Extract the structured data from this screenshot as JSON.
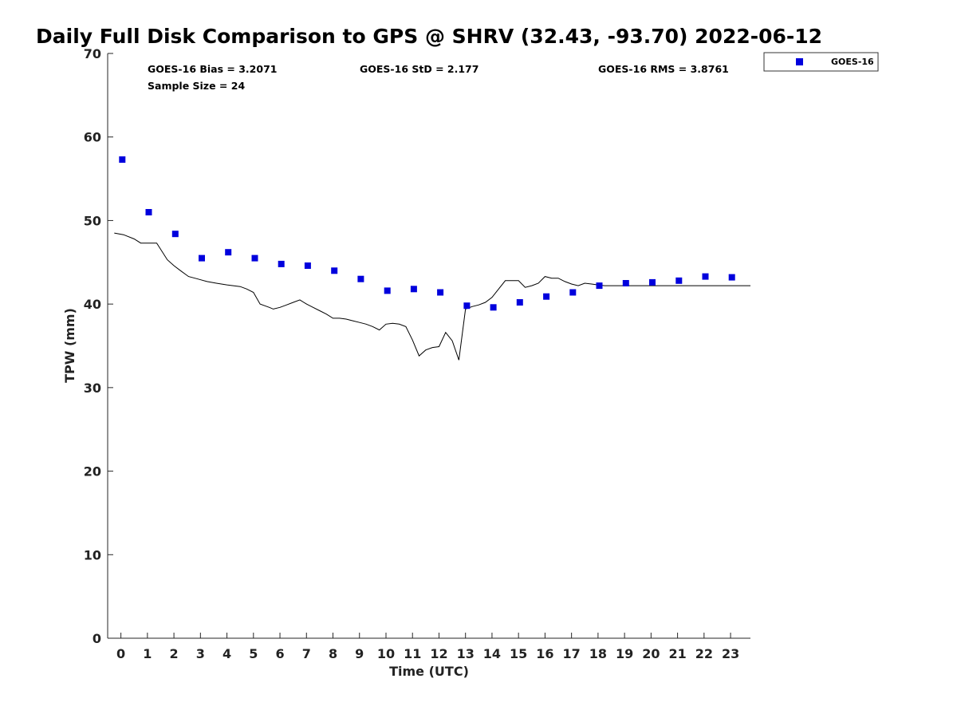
{
  "chart_data": {
    "type": "scatter",
    "title": "Daily Full Disk Comparison to GPS @ SHRV (32.43, -93.70) 2022-06-12",
    "xlabel": "Time (UTC)",
    "ylabel": "TPW (mm)",
    "xlim": [
      -0.5,
      23.75
    ],
    "ylim": [
      0,
      70
    ],
    "x_ticks": [
      0,
      1,
      2,
      3,
      4,
      5,
      6,
      7,
      8,
      9,
      10,
      11,
      12,
      13,
      14,
      15,
      16,
      17,
      18,
      19,
      20,
      21,
      22,
      23
    ],
    "y_ticks": [
      0,
      10,
      20,
      30,
      40,
      50,
      60,
      70
    ],
    "grid": false,
    "legend": {
      "placement": "top-right, outside plot"
    },
    "stats": {
      "bias": "GOES-16 Bias = 3.2071",
      "std": "GOES-16 StD = 2.177",
      "rms": "GOES-16 RMS = 3.8761",
      "sample_size": "Sample Size = 24"
    },
    "series": [
      {
        "name": "GOES-16",
        "kind": "scatter",
        "marker": "square",
        "color": "#0000dd",
        "x": [
          0.05,
          1.05,
          2.05,
          3.05,
          4.05,
          5.05,
          6.05,
          7.05,
          8.05,
          9.05,
          10.05,
          11.05,
          12.05,
          13.05,
          14.05,
          15.05,
          16.05,
          17.05,
          18.05,
          19.05,
          20.05,
          21.05,
          22.05,
          23.05
        ],
        "y": [
          57.3,
          51.0,
          48.4,
          45.5,
          46.2,
          45.5,
          44.8,
          44.6,
          44.0,
          43.0,
          41.6,
          41.8,
          41.4,
          39.8,
          39.6,
          40.2,
          40.9,
          41.4,
          42.2,
          42.5,
          42.6,
          42.8,
          43.3,
          43.2
        ]
      },
      {
        "kind": "line",
        "color": "#000000",
        "x": [
          -0.25,
          0.1,
          0.5,
          0.75,
          1.0,
          1.35,
          1.75,
          2.0,
          2.25,
          2.55,
          2.9,
          3.25,
          3.6,
          4.0,
          4.5,
          4.75,
          5.0,
          5.25,
          5.6,
          5.75,
          6.0,
          6.25,
          6.5,
          6.75,
          7.0,
          7.25,
          7.5,
          7.75,
          8.0,
          8.25,
          8.5,
          8.75,
          9.0,
          9.25,
          9.5,
          9.75,
          10.0,
          10.25,
          10.5,
          10.75,
          11.0,
          11.25,
          11.5,
          11.75,
          12.0,
          12.25,
          12.5,
          12.75,
          13.0,
          13.25,
          13.5,
          13.75,
          14.0,
          14.25,
          14.5,
          14.75,
          15.0,
          15.25,
          15.5,
          15.75,
          16.0,
          16.25,
          16.5,
          16.75,
          17.0,
          17.25,
          17.5,
          17.75,
          18.0,
          18.25,
          18.5,
          18.75,
          19.0,
          19.25,
          19.5,
          19.75,
          20.0,
          20.25,
          20.5,
          20.75,
          21.0,
          21.25,
          21.5,
          21.75,
          22.0,
          22.25,
          22.5,
          22.75,
          23.0,
          23.25,
          23.5,
          23.75
        ],
        "y": [
          48.5,
          48.3,
          47.8,
          47.3,
          47.3,
          47.3,
          45.3,
          44.6,
          44.0,
          43.3,
          43.0,
          42.7,
          42.5,
          42.3,
          42.1,
          41.8,
          41.4,
          40.0,
          39.6,
          39.4,
          39.6,
          39.9,
          40.2,
          40.5,
          40.0,
          39.6,
          39.2,
          38.8,
          38.3,
          38.3,
          38.2,
          38.0,
          37.8,
          37.6,
          37.3,
          36.9,
          37.6,
          37.7,
          37.6,
          37.3,
          35.7,
          33.8,
          34.5,
          34.8,
          34.9,
          36.6,
          35.6,
          33.3,
          39.4,
          39.7,
          39.9,
          40.2,
          40.8,
          41.8,
          42.8,
          42.8,
          42.8,
          42.0,
          42.2,
          42.5,
          43.3,
          43.1,
          43.1,
          42.7,
          42.4,
          42.2,
          42.5,
          42.4,
          42.3,
          42.2,
          42.2,
          42.2,
          42.2,
          42.2,
          42.2,
          42.2,
          42.2,
          42.2,
          42.2,
          42.2,
          42.2,
          42.2,
          42.2,
          42.2,
          42.2,
          42.2,
          42.2,
          42.2,
          42.2,
          42.2,
          42.2,
          42.2
        ]
      }
    ]
  }
}
